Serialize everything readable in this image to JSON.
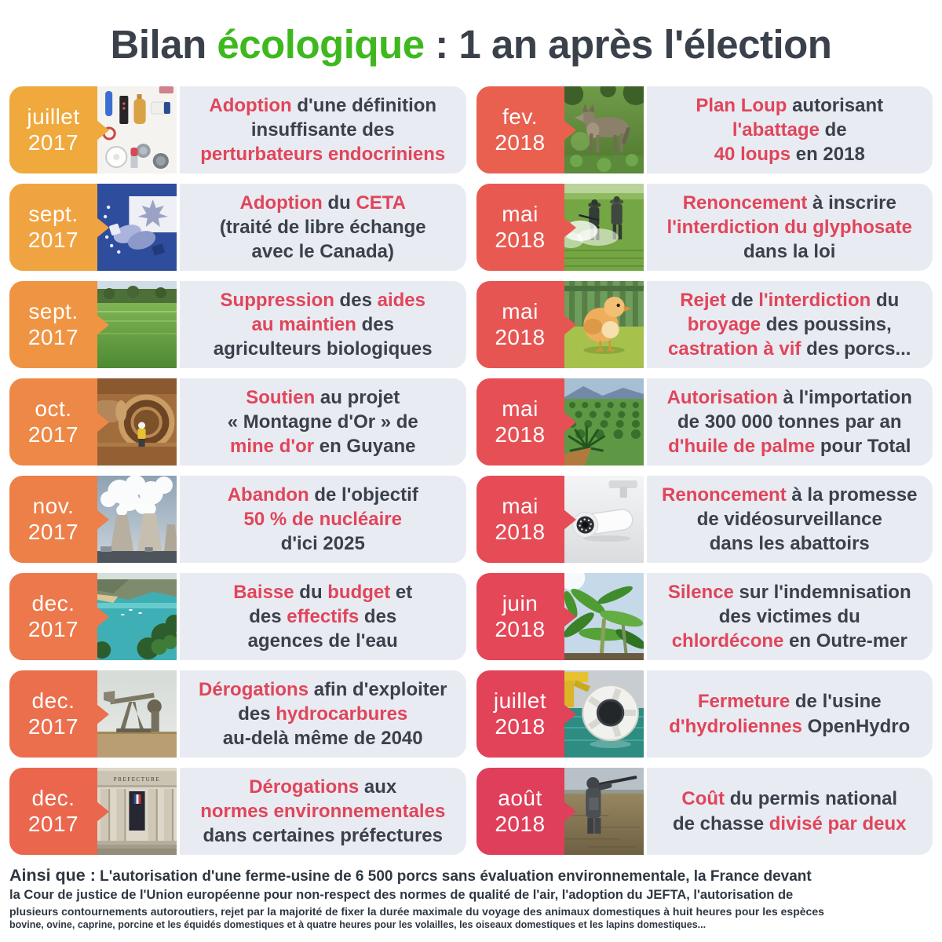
{
  "title": {
    "part1": "Bilan ",
    "highlight": "écologique",
    "part2": " : 1 an après l'élection"
  },
  "colors": {
    "green": "#3eb81e",
    "dark": "#3a414b",
    "red": "#e0455a",
    "panel": "#e9ebf2"
  },
  "rows_left": [
    {
      "month": "juillet",
      "year": "2017",
      "badge_color": "#efa93c",
      "image": "cosmetics-photo",
      "segments": [
        {
          "t": "Adoption",
          "hl": true
        },
        {
          "t": " d'une définition"
        },
        {
          "br": true
        },
        {
          "t": "insuffisante des"
        },
        {
          "br": true
        },
        {
          "t": "perturbateurs endocriniens",
          "hl": true
        }
      ]
    },
    {
      "month": "sept.",
      "year": "2017",
      "badge_color": "#f0a441",
      "image": "eu-canada-handshake-photo",
      "segments": [
        {
          "t": "Adoption",
          "hl": true
        },
        {
          "t": " du "
        },
        {
          "t": "CETA",
          "hl": true
        },
        {
          "br": true
        },
        {
          "t": "(traité de libre échange"
        },
        {
          "br": true
        },
        {
          "t": "avec le Canada)"
        }
      ]
    },
    {
      "month": "sept.",
      "year": "2017",
      "badge_color": "#ef9442",
      "image": "organic-field-photo",
      "segments": [
        {
          "t": "Suppression",
          "hl": true
        },
        {
          "t": " des "
        },
        {
          "t": "aides",
          "hl": true
        },
        {
          "br": true
        },
        {
          "t": "au maintien",
          "hl": true
        },
        {
          "t": " des"
        },
        {
          "br": true
        },
        {
          "t": "agriculteurs biologiques"
        }
      ]
    },
    {
      "month": "oct.",
      "year": "2017",
      "badge_color": "#ee8846",
      "image": "gold-mine-photo",
      "segments": [
        {
          "t": "Soutien",
          "hl": true
        },
        {
          "t": " au projet"
        },
        {
          "br": true
        },
        {
          "t": "« Montagne d'Or » de"
        },
        {
          "br": true
        },
        {
          "t": "mine d'or",
          "hl": true
        },
        {
          "t": " en Guyane"
        }
      ]
    },
    {
      "month": "nov.",
      "year": "2017",
      "badge_color": "#ed7f49",
      "image": "nuclear-plant-photo",
      "segments": [
        {
          "t": "Abandon",
          "hl": true
        },
        {
          "t": " de l'objectif"
        },
        {
          "br": true
        },
        {
          "t": "50 % de nucléaire",
          "hl": true
        },
        {
          "br": true
        },
        {
          "t": "d'ici 2025"
        }
      ]
    },
    {
      "month": "dec.",
      "year": "2017",
      "badge_color": "#ec784b",
      "image": "lake-photo",
      "segments": [
        {
          "t": "Baisse",
          "hl": true
        },
        {
          "t": " du "
        },
        {
          "t": "budget",
          "hl": true
        },
        {
          "t": " et"
        },
        {
          "br": true
        },
        {
          "t": "des "
        },
        {
          "t": "effectifs",
          "hl": true
        },
        {
          "t": " des"
        },
        {
          "br": true
        },
        {
          "t": "agences de l'eau"
        }
      ]
    },
    {
      "month": "dec.",
      "year": "2017",
      "badge_color": "#eb6f4d",
      "image": "oil-pump-photo",
      "segments": [
        {
          "t": "Dérogations",
          "hl": true
        },
        {
          "t": " afin d'exploiter"
        },
        {
          "br": true
        },
        {
          "t": "des "
        },
        {
          "t": "hydrocarbures",
          "hl": true
        },
        {
          "br": true
        },
        {
          "t": "au-delà même de 2040"
        }
      ]
    },
    {
      "month": "dec.",
      "year": "2017",
      "badge_color": "#ea674e",
      "image": "prefecture-photo",
      "image_label": "PREFECTURE",
      "segments": [
        {
          "t": "Dérogations",
          "hl": true
        },
        {
          "t": " aux"
        },
        {
          "br": true
        },
        {
          "t": "normes environnementales",
          "hl": true
        },
        {
          "br": true
        },
        {
          "t": "dans certaines préfectures"
        }
      ]
    }
  ],
  "rows_right": [
    {
      "month": "fev.",
      "year": "2018",
      "badge_color": "#e9604f",
      "image": "wolf-photo",
      "segments": [
        {
          "t": "Plan Loup",
          "hl": true
        },
        {
          "t": " autorisant"
        },
        {
          "br": true
        },
        {
          "t": "l'abattage",
          "hl": true
        },
        {
          "t": " de"
        },
        {
          "br": true
        },
        {
          "t": "40 loups",
          "hl": true
        },
        {
          "t": " en 2018"
        }
      ]
    },
    {
      "month": "mai",
      "year": "2018",
      "badge_color": "#e85a51",
      "image": "pesticide-spraying-photo",
      "segments": [
        {
          "t": "Renoncement",
          "hl": true
        },
        {
          "t": " à inscrire"
        },
        {
          "br": true
        },
        {
          "t": "l'interdiction du glyphosate",
          "hl": true
        },
        {
          "br": true
        },
        {
          "t": "dans la loi"
        }
      ]
    },
    {
      "month": "mai",
      "year": "2018",
      "badge_color": "#e75553",
      "image": "chick-photo",
      "segments": [
        {
          "t": "Rejet",
          "hl": true
        },
        {
          "t": " de "
        },
        {
          "t": "l'interdiction",
          "hl": true
        },
        {
          "t": " du"
        },
        {
          "br": true
        },
        {
          "t": "broyage",
          "hl": true
        },
        {
          "t": " des poussins,"
        },
        {
          "br": true
        },
        {
          "t": "castration à vif",
          "hl": true
        },
        {
          "t": " des porcs..."
        }
      ]
    },
    {
      "month": "mai",
      "year": "2018",
      "badge_color": "#e65054",
      "image": "palm-plantation-photo",
      "segments": [
        {
          "t": "Autorisation",
          "hl": true
        },
        {
          "t": " à l'importation"
        },
        {
          "br": true
        },
        {
          "t": "de 300 000 tonnes par an"
        },
        {
          "br": true
        },
        {
          "t": "d'huile de palme",
          "hl": true
        },
        {
          "t": " pour Total"
        }
      ]
    },
    {
      "month": "mai",
      "year": "2018",
      "badge_color": "#e54c56",
      "image": "cctv-camera-photo",
      "segments": [
        {
          "t": "Renoncement",
          "hl": true
        },
        {
          "t": " à la promesse"
        },
        {
          "br": true
        },
        {
          "t": "de vidéosurveillance"
        },
        {
          "br": true
        },
        {
          "t": "dans les abattoirs"
        }
      ]
    },
    {
      "month": "juin",
      "year": "2018",
      "badge_color": "#e44757",
      "image": "banana-plantation-photo",
      "segments": [
        {
          "t": "Silence",
          "hl": true
        },
        {
          "t": " sur l'indemnisation"
        },
        {
          "br": true
        },
        {
          "t": "des victimes du"
        },
        {
          "br": true
        },
        {
          "t": "chlordécone",
          "hl": true
        },
        {
          "t": " en Outre-mer"
        }
      ]
    },
    {
      "month": "juillet",
      "year": "2018",
      "badge_color": "#e24359",
      "image": "tidal-turbine-photo",
      "segments": [
        {
          "t": "Fermeture",
          "hl": true
        },
        {
          "t": " de l'usine"
        },
        {
          "br": true
        },
        {
          "t": "d'hydroliennes",
          "hl": true
        },
        {
          "t": " OpenHydro"
        }
      ]
    },
    {
      "month": "août",
      "year": "2018",
      "badge_color": "#df3f5b",
      "image": "hunter-photo",
      "segments": [
        {
          "t": "Coût",
          "hl": true
        },
        {
          "t": " du permis national"
        },
        {
          "br": true
        },
        {
          "t": "de chasse "
        },
        {
          "t": "divisé par deux",
          "hl": true
        }
      ]
    }
  ],
  "footer": {
    "lead": "Ainsi que :",
    "line1": " L'autorisation d'une ferme-usine de 6 500 porcs sans évaluation environnementale, la France devant",
    "line2": "la Cour de justice de l'Union européenne pour non-respect des normes de qualité de l'air, l'adoption du JEFTA, l'autorisation de",
    "line3": "plusieurs contournements autoroutiers, rejet par la majorité de fixer la durée maximale du voyage des animaux domestiques à huit heures pour les espèces",
    "line4": "bovine, ovine, caprine, porcine et les équidés domestiques et à quatre heures pour les volailles, les oiseaux domestiques et les lapins domestiques..."
  }
}
